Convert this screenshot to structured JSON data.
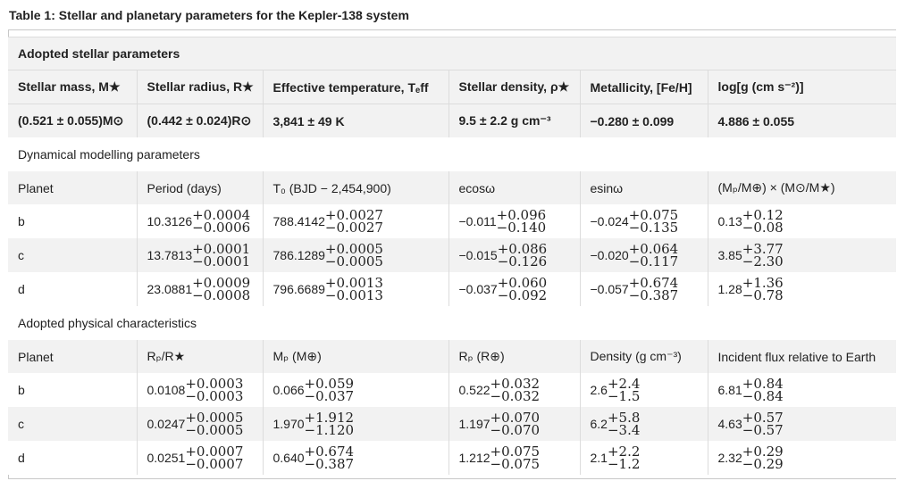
{
  "caption": "Table 1: Stellar and planetary parameters for the Kepler-138 system",
  "stellar": {
    "section_title": "Adopted stellar parameters",
    "headers": [
      "Stellar mass, M★",
      "Stellar radius, R★",
      "Effective temperature, Tₑff",
      "Stellar density, ρ★",
      "Metallicity, [Fe/H]",
      "log[g (cm s⁻²)]"
    ],
    "values": [
      "(0.521 ± 0.055)M⊙",
      "(0.442 ± 0.024)R⊙",
      "3,841 ± 49 K",
      "9.5 ± 2.2 g cm⁻³",
      "−0.280 ± 0.099",
      "4.886 ± 0.055"
    ]
  },
  "dynamical": {
    "section_title": "Dynamical modelling parameters",
    "headers": [
      "Planet",
      "Period (days)",
      "T₀ (BJD − 2,454,900)",
      "ecosω",
      "esinω",
      "(Mₚ/M⊕) × (M⊙/M★)"
    ],
    "rows": [
      {
        "planet": "b",
        "period": {
          "v": "10.3126",
          "p": "+0.0004",
          "m": "−0.0006"
        },
        "t0": {
          "v": "788.4142",
          "p": "+0.0027",
          "m": "−0.0027"
        },
        "ecos": {
          "v": "−0.011",
          "p": "+0.096",
          "m": "−0.140"
        },
        "esin": {
          "v": "−0.024",
          "p": "+0.075",
          "m": "−0.135"
        },
        "mass": {
          "v": "0.13",
          "p": "+0.12",
          "m": "−0.08"
        }
      },
      {
        "planet": "c",
        "period": {
          "v": "13.7813",
          "p": "+0.0001",
          "m": "−0.0001"
        },
        "t0": {
          "v": "786.1289",
          "p": "+0.0005",
          "m": "−0.0005"
        },
        "ecos": {
          "v": "−0.015",
          "p": "+0.086",
          "m": "−0.126"
        },
        "esin": {
          "v": "−0.020",
          "p": "+0.064",
          "m": "−0.117"
        },
        "mass": {
          "v": "3.85",
          "p": "+3.77",
          "m": "−2.30"
        }
      },
      {
        "planet": "d",
        "period": {
          "v": "23.0881",
          "p": "+0.0009",
          "m": "−0.0008"
        },
        "t0": {
          "v": "796.6689",
          "p": "+0.0013",
          "m": "−0.0013"
        },
        "ecos": {
          "v": "−0.037",
          "p": "+0.060",
          "m": "−0.092"
        },
        "esin": {
          "v": "−0.057",
          "p": "+0.674",
          "m": "−0.387"
        },
        "mass": {
          "v": "1.28",
          "p": "+1.36",
          "m": "−0.78"
        }
      }
    ]
  },
  "physical": {
    "section_title": "Adopted physical characteristics",
    "headers": [
      "Planet",
      "Rₚ/R★",
      "Mₚ (M⊕)",
      "Rₚ (R⊕)",
      "Density (g cm⁻³)",
      "Incident flux relative to Earth"
    ],
    "rows": [
      {
        "planet": "b",
        "rr": {
          "v": "0.0108",
          "p": "+0.0003",
          "m": "−0.0003"
        },
        "mp": {
          "v": "0.066",
          "p": "+0.059",
          "m": "−0.037"
        },
        "rp": {
          "v": "0.522",
          "p": "+0.032",
          "m": "−0.032"
        },
        "dens": {
          "v": "2.6",
          "p": "+2.4",
          "m": "−1.5"
        },
        "flux": {
          "v": "6.81",
          "p": "+0.84",
          "m": "−0.84"
        }
      },
      {
        "planet": "c",
        "rr": {
          "v": "0.0247",
          "p": "+0.0005",
          "m": "−0.0005"
        },
        "mp": {
          "v": "1.970",
          "p": "+1.912",
          "m": "−1.120"
        },
        "rp": {
          "v": "1.197",
          "p": "+0.070",
          "m": "−0.070"
        },
        "dens": {
          "v": "6.2",
          "p": "+5.8",
          "m": "−3.4"
        },
        "flux": {
          "v": "4.63",
          "p": "+0.57",
          "m": "−0.57"
        }
      },
      {
        "planet": "d",
        "rr": {
          "v": "0.0251",
          "p": "+0.0007",
          "m": "−0.0007"
        },
        "mp": {
          "v": "0.640",
          "p": "+0.674",
          "m": "−0.387"
        },
        "rp": {
          "v": "1.212",
          "p": "+0.075",
          "m": "−0.075"
        },
        "dens": {
          "v": "2.1",
          "p": "+2.2",
          "m": "−1.2"
        },
        "flux": {
          "v": "2.32",
          "p": "+0.29",
          "m": "−0.29"
        }
      }
    ]
  }
}
